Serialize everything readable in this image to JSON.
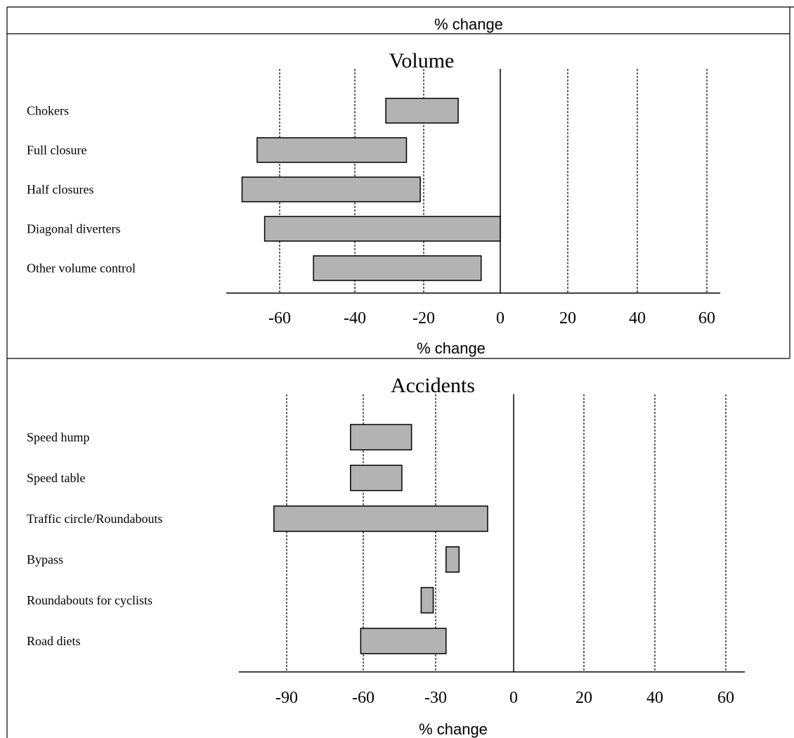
{
  "header": {
    "label": "% change"
  },
  "colors": {
    "bar_fill": "#b3b3b3",
    "stroke": "#000000",
    "background": "#ffffff"
  },
  "chart_data": [
    {
      "type": "bar",
      "orientation": "horizontal",
      "style": "floating-range",
      "title": "Volume",
      "xlabel": "% change",
      "ticks": [
        "-60",
        "-40",
        "-20",
        "0",
        "20",
        "40",
        "60"
      ],
      "xlim": [
        -77,
        63
      ],
      "grid": "dashed vertical at -60, -40, -20, 20, 40, 60; solid at 0",
      "categories": [
        "Chokers",
        "Full closure",
        "Half closures",
        "Diagonal diverters",
        "Other volume control"
      ],
      "series": [
        {
          "values": [
            [
              -31,
              -11
            ],
            [
              -66,
              -25
            ],
            [
              -70,
              -21
            ],
            [
              -64,
              0
            ],
            [
              -51,
              -5
            ]
          ]
        }
      ]
    },
    {
      "type": "bar",
      "orientation": "horizontal",
      "style": "floating-range",
      "title": "Accidents",
      "xlabel": "% change",
      "ticks": [
        "-90",
        "-60",
        "-30",
        "0",
        "20",
        "40",
        "60"
      ],
      "grid": "dashed vertical at -90, -60, -30, 20, 40, 60; solid at 0",
      "categories": [
        "Speed hump",
        "Speed table",
        "Traffic circle/Roundabouts",
        "Bypass",
        "Roundabouts for cyclists",
        "Road diets"
      ],
      "series": [
        {
          "values": [
            [
              -65,
              -40
            ],
            [
              -65,
              -44
            ],
            [
              -95,
              -10
            ],
            [
              -26,
              -21
            ],
            [
              -36,
              -31
            ],
            [
              -61,
              -26
            ]
          ]
        }
      ]
    }
  ]
}
